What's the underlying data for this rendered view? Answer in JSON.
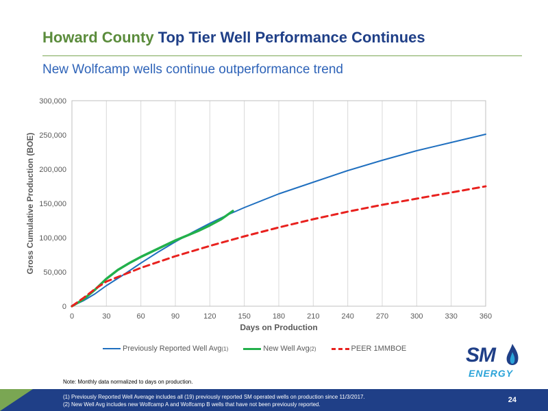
{
  "header": {
    "title_part1": "Howard County",
    "title_part2": " Top Tier Well Performance Continues",
    "subtitle": "New Wolfcamp wells continue outperformance trend"
  },
  "legend": {
    "items": [
      {
        "label": "Previously Reported Well Avg",
        "sup": "(1)"
      },
      {
        "label": "New Well Avg",
        "sup": "(2)"
      },
      {
        "label": "PEER 1MMBOE",
        "sup": ""
      }
    ]
  },
  "logo": {
    "sm": "SM",
    "energy": "ENERGY"
  },
  "note": "Note: Monthly data normalized to days on production.",
  "footnotes": [
    "(1)    Previously Reported Well Average includes all (19) previously reported SM operated wells on production since 11/3/2017.",
    "(2)    New Well Avg includes new Wolfcamp A and Wolfcamp B wells that have not been previously reported."
  ],
  "page_number": "24",
  "colors": {
    "previously_reported": "#1f6fbf",
    "new_well": "#22b04b",
    "peer": "#e8211e",
    "title_green": "#5b8c3c",
    "title_blue": "#1f3f87"
  },
  "chart_data": {
    "type": "line",
    "xlabel": "Days on Production",
    "ylabel": "Gross Cumulative Production (BOE)",
    "xlim": [
      0,
      360
    ],
    "ylim": [
      0,
      300000
    ],
    "x_ticks": [
      0,
      30,
      60,
      90,
      120,
      150,
      180,
      210,
      240,
      270,
      300,
      330,
      360
    ],
    "y_ticks": [
      0,
      50000,
      100000,
      150000,
      200000,
      250000,
      300000
    ],
    "x_tick_labels": [
      "0",
      "30",
      "60",
      "90",
      "120",
      "150",
      "180",
      "210",
      "240",
      "270",
      "300",
      "330",
      "360"
    ],
    "y_tick_labels": [
      "0",
      "50,000",
      "100,000",
      "150,000",
      "200,000",
      "250,000",
      "300,000"
    ],
    "grid": "vertical",
    "legend_position": "bottom",
    "series": [
      {
        "name": "Previously Reported Well Avg(1)",
        "style": "solid",
        "x": [
          0,
          10,
          20,
          30,
          45,
          60,
          75,
          90,
          105,
          120,
          135,
          150,
          180,
          210,
          240,
          270,
          300,
          330,
          360
        ],
        "y": [
          0,
          8000,
          18000,
          30000,
          46000,
          63000,
          79000,
          94000,
          108000,
          121000,
          133000,
          144000,
          164000,
          181000,
          198000,
          213000,
          227000,
          239000,
          251000
        ]
      },
      {
        "name": "New Well Avg(2)",
        "style": "solid",
        "x": [
          0,
          10,
          20,
          30,
          40,
          50,
          60,
          70,
          80,
          90,
          100,
          110,
          120,
          130,
          140
        ],
        "y": [
          0,
          10000,
          24000,
          40000,
          53000,
          63000,
          72000,
          80000,
          88000,
          96000,
          103000,
          110000,
          118000,
          127000,
          139000
        ]
      },
      {
        "name": "PEER 1MMBOE",
        "style": "dashed",
        "x": [
          0,
          10,
          20,
          30,
          45,
          60,
          90,
          120,
          150,
          180,
          210,
          240,
          270,
          300,
          330,
          360
        ],
        "y": [
          0,
          12000,
          25000,
          36000,
          46000,
          56000,
          73000,
          88000,
          102000,
          115000,
          127000,
          138000,
          148000,
          157000,
          166000,
          175000
        ]
      }
    ]
  }
}
